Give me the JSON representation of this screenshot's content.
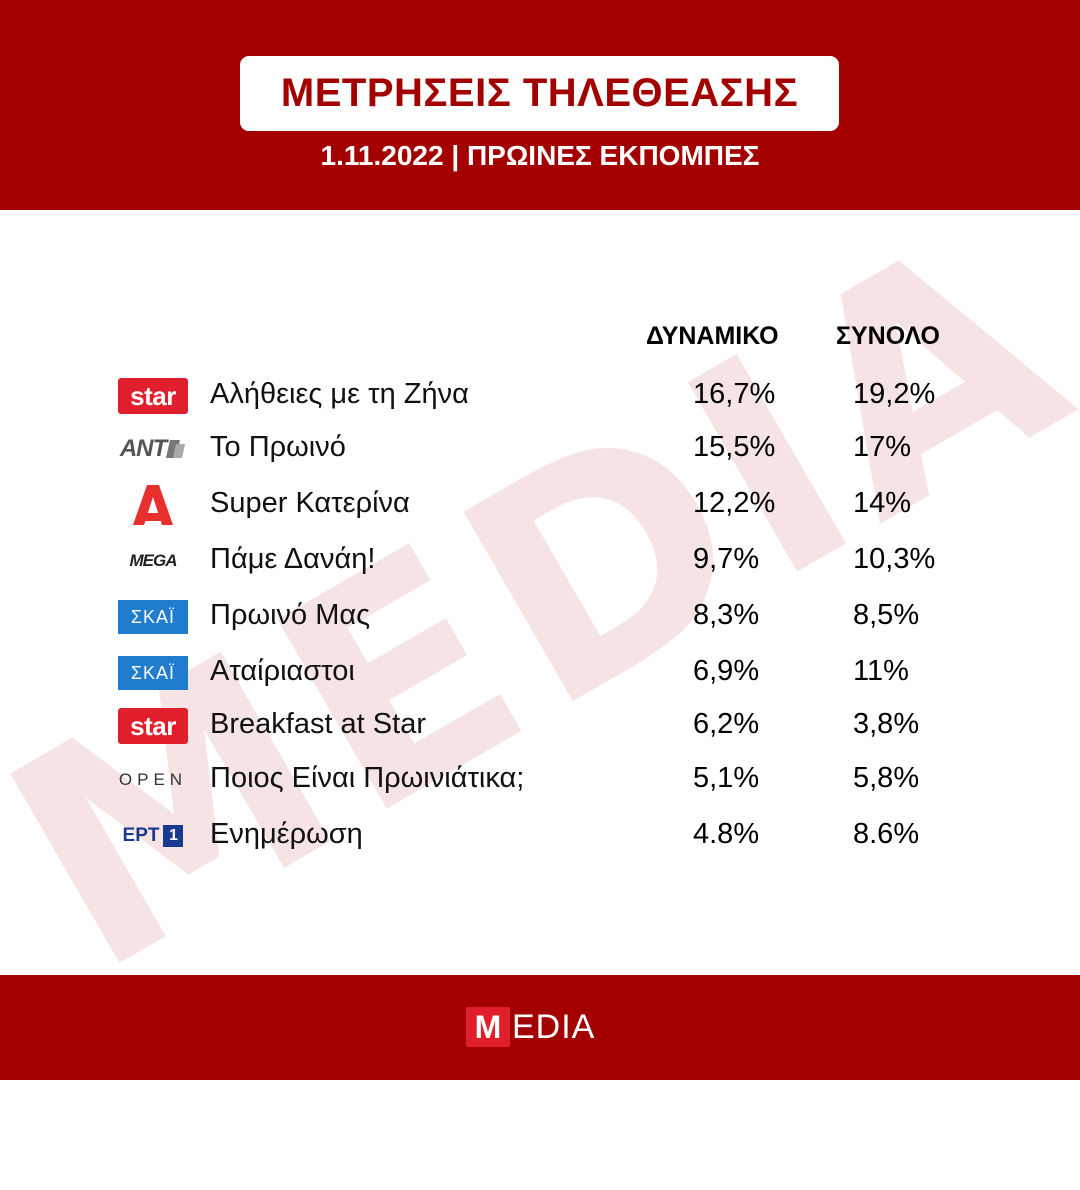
{
  "header": {
    "title": "ΜΕΤΡΗΣΕΙΣ ΤΗΛΕΘΕΑΣΗΣ",
    "subtitle": "1.11.2022 | ΠΡΩΙΝΕΣ ΕΚΠΟΜΠΕΣ"
  },
  "watermark": "MEDIA",
  "columns": {
    "dynamic": "ΔΥΝΑΜΙΚΟ",
    "total": "ΣΥΝΟΛΟ"
  },
  "rows": [
    {
      "channel_logo": "star",
      "show": "Αλήθειες με τη Ζήνα",
      "dynamic": "16,7%",
      "total": "19,2%"
    },
    {
      "channel_logo": "ANT1",
      "show": "Το Πρωινό",
      "dynamic": "15,5%",
      "total": "17%"
    },
    {
      "channel_logo": "alpha-logo",
      "show": "Super Κατερίνα",
      "dynamic": "12,2%",
      "total": "14%"
    },
    {
      "channel_logo": "MEGA",
      "show": "Πάμε Δανάη!",
      "dynamic": "9,7%",
      "total": "10,3%"
    },
    {
      "channel_logo": "ΣΚΑΪ",
      "show": "Πρωινό Μας",
      "dynamic": "8,3%",
      "total": "8,5%"
    },
    {
      "channel_logo": "ΣΚΑΪ",
      "show": "Αταίριαστοι",
      "dynamic": "6,9%",
      "total": "11%"
    },
    {
      "channel_logo": "star",
      "show": "Breakfast at Star",
      "dynamic": "6,2%",
      "total": "3,8%"
    },
    {
      "channel_logo": "OPEN",
      "show": "Ποιος Είναι Πρωινιάτικα;",
      "dynamic": "5,1%",
      "total": "5,8%"
    },
    {
      "channel_logo": "ΕΡΤ1",
      "show": "Ενημέρωση",
      "dynamic": "4.8%",
      "total": "8.6%"
    }
  ],
  "logos": {
    "star": "star",
    "ant_text": "ANT",
    "mega_text": "MEGA",
    "skai_text": "ΣΚΑΪ",
    "open_text": "OPEN",
    "ert_text": "ΕΡΤ",
    "ert_num": "1"
  },
  "footer": {
    "logo_m": "M",
    "logo_rest": "EDIA"
  },
  "colors": {
    "brand_red": "#a30000",
    "star_red": "#e11e2b",
    "skai_blue": "#1f7ccf",
    "ert_blue": "#1a3a8f",
    "alpha_red": "#e8312f"
  }
}
